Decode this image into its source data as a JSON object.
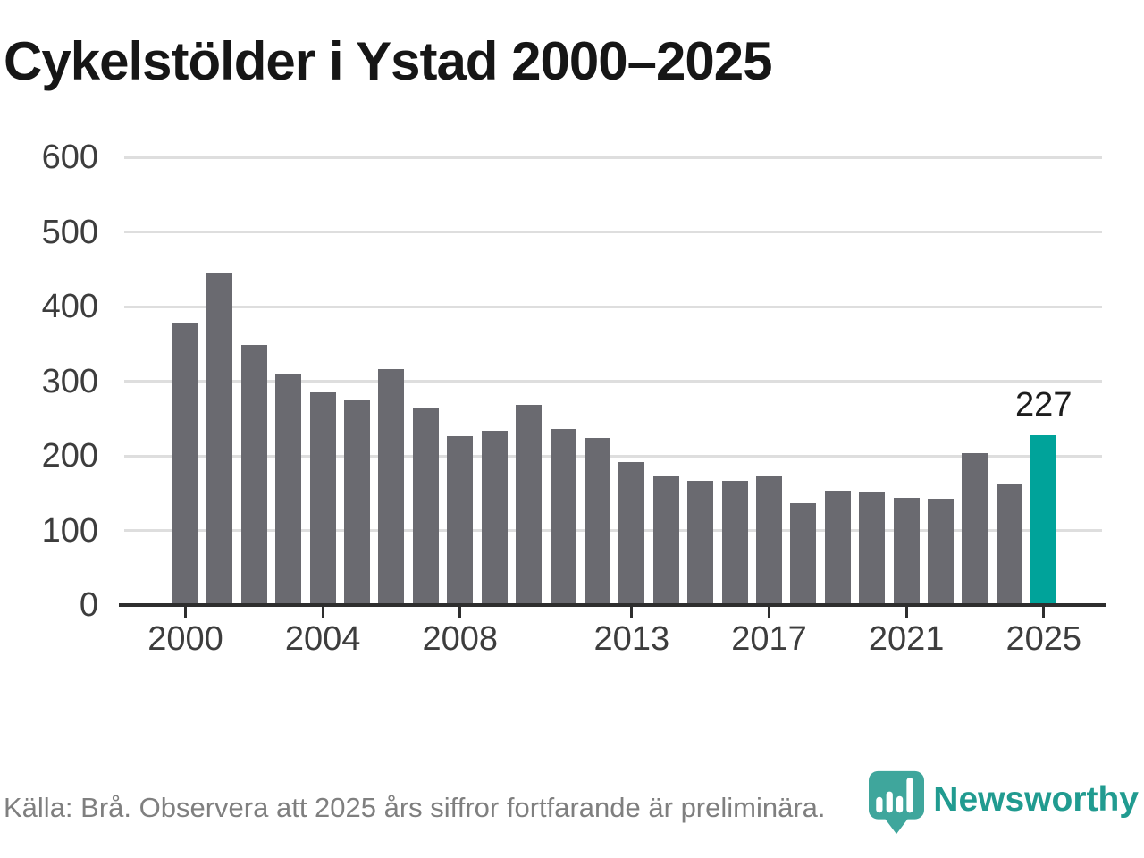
{
  "title": "Cykelstölder i Ystad 2000–2025",
  "footer": {
    "source": "Källa: Brå. Observera att 2025 års siffror fortfarande är preliminära.",
    "brand": "Newsworthy"
  },
  "colors": {
    "bar": "#6a6a70",
    "highlight": "#00a39a",
    "grid": "#dedede",
    "axis": "#2e2e2e",
    "pin": "#3fa69c",
    "brand_text": "#219b90"
  },
  "chart_data": {
    "type": "bar",
    "title": "Cykelstölder i Ystad 2000–2025",
    "xlabel": "",
    "ylabel": "",
    "categories": [
      2000,
      2001,
      2002,
      2003,
      2004,
      2005,
      2006,
      2007,
      2008,
      2009,
      2010,
      2011,
      2012,
      2013,
      2014,
      2015,
      2016,
      2017,
      2018,
      2019,
      2020,
      2021,
      2022,
      2023,
      2024,
      2025
    ],
    "values": [
      378,
      445,
      349,
      310,
      285,
      276,
      316,
      264,
      226,
      233,
      268,
      236,
      224,
      192,
      173,
      166,
      167,
      172,
      136,
      153,
      151,
      144,
      143,
      204,
      163,
      227
    ],
    "highlight_index": 25,
    "annotation": {
      "index": 25,
      "label": "227"
    },
    "y_ticks": [
      0,
      100,
      200,
      300,
      400,
      500,
      600
    ],
    "ylim": [
      0,
      600
    ],
    "x_ticks": [
      {
        "year": 2000,
        "label": "2000"
      },
      {
        "year": 2004,
        "label": "2004"
      },
      {
        "year": 2008,
        "label": "2008"
      },
      {
        "year": 2013,
        "label": "2013"
      },
      {
        "year": 2017,
        "label": "2017"
      },
      {
        "year": 2021,
        "label": "2021"
      },
      {
        "year": 2025,
        "label": "2025"
      }
    ],
    "grid": "horizontal",
    "legend": "none"
  }
}
